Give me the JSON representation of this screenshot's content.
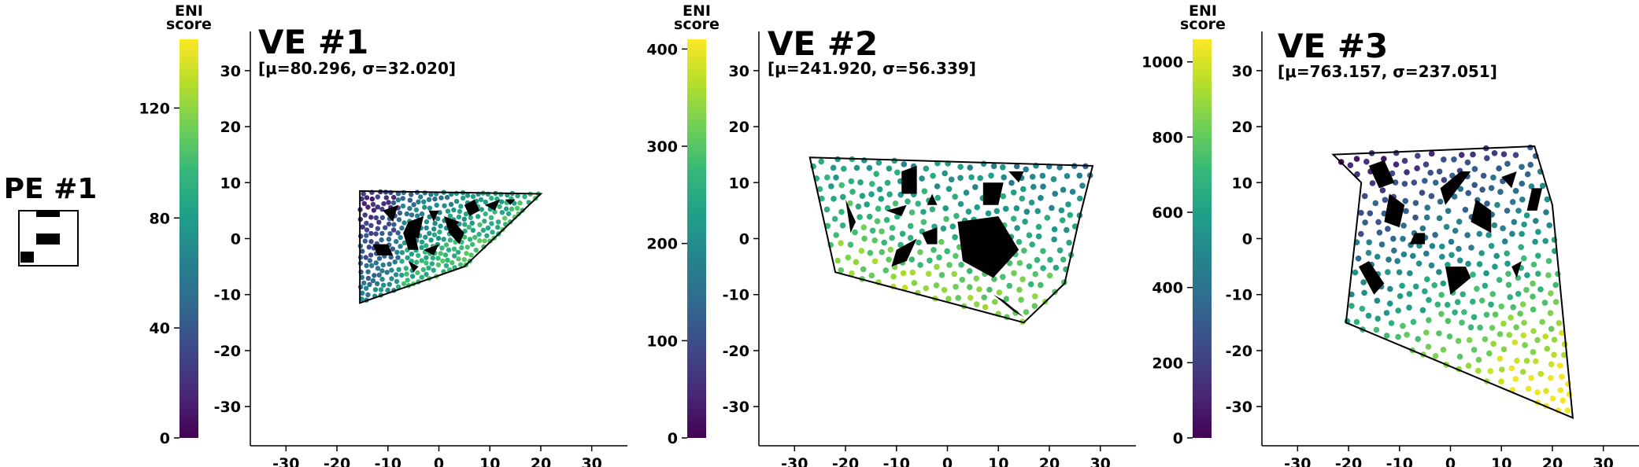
{
  "pe": {
    "title": "PE #1"
  },
  "colorbar_label": {
    "line1": "ENI",
    "line2": "score"
  },
  "colors": {
    "viridis": [
      "#440154",
      "#482878",
      "#3e4989",
      "#31688e",
      "#26828e",
      "#1f9e89",
      "#35b779",
      "#6ece58",
      "#b5de2b",
      "#fde725"
    ],
    "obstacle": "#000000",
    "boundary": "#000000",
    "axis": "#000000"
  },
  "chart_data": [
    {
      "type": "scatter",
      "title": "VE #1",
      "subtitle": "[μ=80.296, σ=32.020]",
      "xlim": [
        -37,
        37
      ],
      "ylim": [
        -37,
        37
      ],
      "x_ticks": [
        -30,
        -20,
        -10,
        0,
        10,
        20,
        30
      ],
      "y_ticks": [
        -30,
        -20,
        -10,
        0,
        10,
        20,
        30
      ],
      "grid": false,
      "colorbar": {
        "label": "ENI score",
        "range": [
          0,
          145
        ],
        "ticks": [
          0,
          40,
          80,
          120
        ]
      },
      "boundary": [
        [
          -15.5,
          8.5
        ],
        [
          20,
          8
        ],
        [
          5,
          -5
        ],
        [
          -15.5,
          -11.5
        ]
      ],
      "obstacles": [
        [
          [
            -11,
            5
          ],
          [
            -8,
            6
          ],
          [
            -9,
            3
          ]
        ],
        [
          [
            -6,
            3
          ],
          [
            -3,
            4
          ],
          [
            -4,
            0
          ],
          [
            -7,
            1
          ]
        ],
        [
          [
            -2,
            5
          ],
          [
            0,
            5
          ],
          [
            -1,
            3
          ]
        ],
        [
          [
            1,
            4
          ],
          [
            4,
            3
          ],
          [
            2,
            1
          ]
        ],
        [
          [
            5,
            6
          ],
          [
            7,
            7
          ],
          [
            8,
            5
          ],
          [
            6,
            4
          ]
        ],
        [
          [
            9,
            6
          ],
          [
            12,
            7
          ],
          [
            11,
            5
          ]
        ],
        [
          [
            13,
            7
          ],
          [
            15,
            7
          ],
          [
            14,
            6
          ]
        ],
        [
          [
            -13,
            -1
          ],
          [
            -10,
            -1
          ],
          [
            -9,
            -3
          ],
          [
            -12,
            -3
          ]
        ],
        [
          [
            -7,
            1
          ],
          [
            -5,
            2
          ],
          [
            -4,
            -2
          ],
          [
            -6,
            -2
          ]
        ],
        [
          [
            -3,
            -2
          ],
          [
            0,
            -1
          ],
          [
            -1,
            -3
          ]
        ],
        [
          [
            3,
            3
          ],
          [
            5,
            1
          ],
          [
            4,
            -1
          ],
          [
            2,
            1
          ]
        ],
        [
          [
            -6,
            -4
          ],
          [
            -4,
            -5
          ],
          [
            -5,
            -6
          ]
        ]
      ],
      "points": {
        "count": 420,
        "value_range": [
          10,
          140
        ],
        "trend": "bottom-right high (yellow), left side low (purple)"
      }
    },
    {
      "type": "scatter",
      "title": "VE #2",
      "subtitle": "[μ=241.920, σ=56.339]",
      "xlim": [
        -37,
        37
      ],
      "ylim": [
        -37,
        37
      ],
      "x_ticks": [
        -30,
        -20,
        -10,
        0,
        10,
        20,
        30
      ],
      "y_ticks": [
        -30,
        -20,
        -10,
        0,
        10,
        20,
        30
      ],
      "grid": false,
      "colorbar": {
        "label": "ENI score",
        "range": [
          0,
          410
        ],
        "ticks": [
          0,
          100,
          200,
          300,
          400
        ]
      },
      "boundary": [
        [
          -27,
          14.5
        ],
        [
          28.5,
          13
        ],
        [
          26,
          4
        ],
        [
          23,
          -8
        ],
        [
          15,
          -15
        ],
        [
          -22,
          -6
        ]
      ],
      "obstacles": [
        [
          [
            -9,
            12
          ],
          [
            -6,
            13
          ],
          [
            -6,
            8
          ],
          [
            -9,
            8
          ]
        ],
        [
          [
            7,
            10
          ],
          [
            11,
            10
          ],
          [
            10,
            6
          ],
          [
            7,
            6
          ]
        ],
        [
          [
            12,
            12
          ],
          [
            15,
            12
          ],
          [
            14,
            10
          ]
        ],
        [
          [
            -20,
            7
          ],
          [
            -19,
            5
          ],
          [
            -18,
            3
          ],
          [
            -19,
            1
          ]
        ],
        [
          [
            -12,
            5
          ],
          [
            -8,
            6
          ],
          [
            -9,
            4
          ]
        ],
        [
          [
            -3,
            8
          ],
          [
            -2,
            6
          ],
          [
            -4,
            6
          ]
        ],
        [
          [
            -5,
            1
          ],
          [
            -2,
            2
          ],
          [
            -2,
            -1
          ],
          [
            -4,
            -1
          ]
        ],
        [
          [
            2,
            3
          ],
          [
            10,
            4
          ],
          [
            14,
            -2
          ],
          [
            9,
            -7
          ],
          [
            3,
            -4
          ]
        ],
        [
          [
            -10,
            -2
          ],
          [
            -6,
            0
          ],
          [
            -8,
            -4
          ],
          [
            -11,
            -5
          ]
        ],
        [
          [
            9,
            -10
          ],
          [
            13,
            -13
          ],
          [
            15,
            -14
          ],
          [
            11,
            -11
          ]
        ]
      ],
      "points": {
        "count": 300,
        "value_range": [
          150,
          400
        ],
        "trend": "top rows lower (blue/teal), lower-left higher (yellow-green)"
      }
    },
    {
      "type": "scatter",
      "title": "VE #3",
      "subtitle": "[μ=763.157, σ=237.051]",
      "xlim": [
        -37,
        37
      ],
      "ylim": [
        -37,
        37
      ],
      "x_ticks": [
        -30,
        -20,
        -10,
        0,
        10,
        20,
        30
      ],
      "y_ticks": [
        -30,
        -20,
        -10,
        0,
        10,
        20,
        30
      ],
      "grid": false,
      "colorbar": {
        "label": "ENI score",
        "range": [
          0,
          1060
        ],
        "ticks": [
          0,
          200,
          400,
          600,
          800,
          1000
        ]
      },
      "boundary": [
        [
          -23,
          15
        ],
        [
          16.5,
          16.5
        ],
        [
          20,
          6
        ],
        [
          24,
          -32
        ],
        [
          -20.5,
          -15
        ],
        [
          -17.5,
          10
        ]
      ],
      "obstacles": [
        [
          [
            -16,
            13
          ],
          [
            -13,
            14
          ],
          [
            -11,
            10
          ],
          [
            -14,
            9
          ]
        ],
        [
          [
            -12,
            8
          ],
          [
            -9,
            6
          ],
          [
            -10,
            2
          ],
          [
            -13,
            3
          ]
        ],
        [
          [
            -2,
            9
          ],
          [
            2,
            12
          ],
          [
            4,
            12
          ],
          [
            -1,
            6
          ]
        ],
        [
          [
            10,
            11
          ],
          [
            13,
            12
          ],
          [
            12,
            9
          ]
        ],
        [
          [
            16,
            9
          ],
          [
            18,
            9
          ],
          [
            17,
            5
          ],
          [
            15,
            5
          ]
        ],
        [
          [
            5,
            7
          ],
          [
            8,
            5
          ],
          [
            8,
            1
          ],
          [
            4,
            3
          ]
        ],
        [
          [
            -7,
            1
          ],
          [
            -5,
            1
          ],
          [
            -5,
            -1
          ],
          [
            -8,
            -1
          ]
        ],
        [
          [
            -18,
            -5
          ],
          [
            -16,
            -4
          ],
          [
            -13,
            -8
          ],
          [
            -15,
            -10
          ]
        ],
        [
          [
            -1,
            -5
          ],
          [
            3,
            -5
          ],
          [
            4,
            -7
          ],
          [
            0,
            -10
          ]
        ],
        [
          [
            12,
            -5
          ],
          [
            14,
            -4
          ],
          [
            13,
            -7
          ]
        ]
      ],
      "points": {
        "count": 330,
        "value_range": [
          300,
          1050
        ],
        "trend": "top area purple/blue, bottom-right bright yellow"
      }
    }
  ]
}
